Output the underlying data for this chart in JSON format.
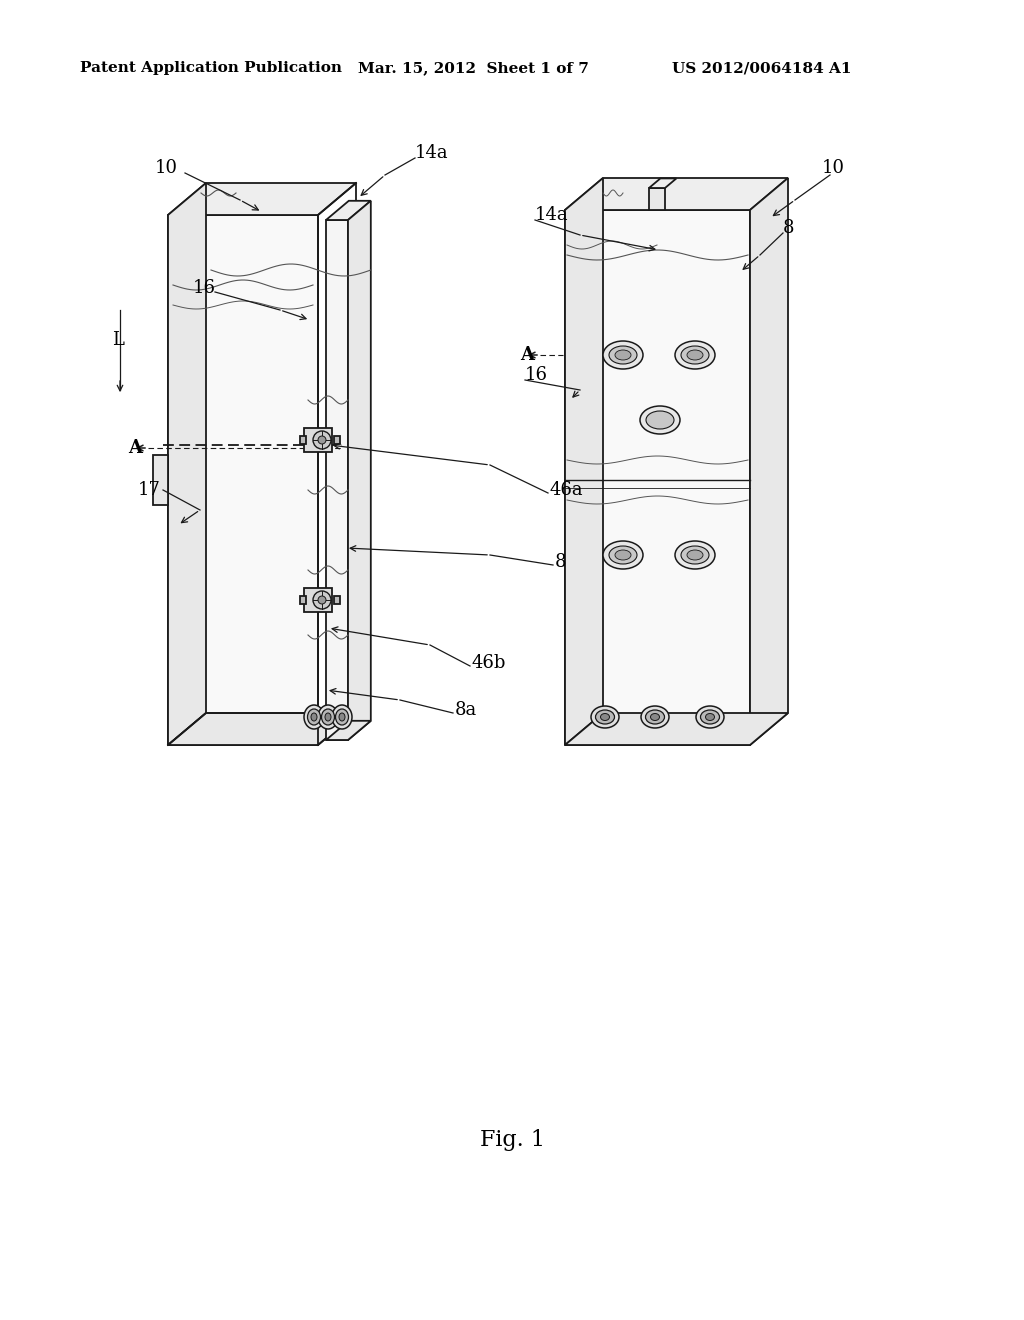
{
  "bg_color": "#ffffff",
  "fig_label": "Fig. 1",
  "header_left": "Patent Application Publication",
  "header_mid": "Mar. 15, 2012  Sheet 1 of 7",
  "header_right": "US 2012/0064184 A1",
  "face_color": "#f9f9f9",
  "side_color": "#e8e8e8",
  "top_color": "#eeeeee",
  "line_color": "#1a1a1a",
  "lw": 1.3
}
